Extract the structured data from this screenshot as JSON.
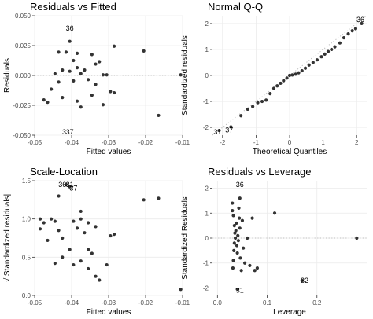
{
  "chart_data": [
    {
      "type": "scatter",
      "title": "Residuals vs Fitted",
      "xlabel": "Fitted values",
      "ylabel": "Residuals",
      "xlim": [
        -0.05,
        -0.01
      ],
      "ylim": [
        -0.05,
        0.05
      ],
      "xticks": [
        "-0.05",
        "-0.04",
        "-0.03",
        "-0.02",
        "-0.01"
      ],
      "xtick_values": [
        -0.05,
        -0.04,
        -0.03,
        -0.02,
        -0.01
      ],
      "yticks": [
        "-0.050",
        "-0.025",
        "0.000",
        "0.025",
        "0.050"
      ],
      "ytick_values": [
        -0.05,
        -0.025,
        0,
        0.025,
        0.05
      ],
      "reference_line": {
        "type": "horizontal",
        "y": 0,
        "style": "dotted"
      },
      "grid": true,
      "points": [
        {
          "x": -0.0435,
          "y": 0.0195
        },
        {
          "x": -0.0415,
          "y": 0.0195
        },
        {
          "x": -0.0405,
          "y": 0.0285
        },
        {
          "x": -0.0385,
          "y": 0.0185
        },
        {
          "x": -0.0375,
          "y": 0.0015
        },
        {
          "x": -0.0365,
          "y": 0.0045
        },
        {
          "x": -0.0345,
          "y": 0.0175
        },
        {
          "x": -0.0335,
          "y": 0.0095
        },
        {
          "x": -0.0325,
          "y": 0.0115
        },
        {
          "x": -0.0285,
          "y": 0.0245
        },
        {
          "x": -0.0305,
          "y": 0.0005
        },
        {
          "x": -0.0315,
          "y": 0.0005
        },
        {
          "x": -0.0395,
          "y": 0.0125
        },
        {
          "x": -0.0385,
          "y": 0.0065
        },
        {
          "x": -0.0405,
          "y": 0.0035
        },
        {
          "x": -0.0425,
          "y": 0.0045
        },
        {
          "x": -0.0445,
          "y": 0.0015
        },
        {
          "x": -0.0395,
          "y": -0.0045
        },
        {
          "x": -0.0355,
          "y": -0.0035
        },
        {
          "x": -0.0335,
          "y": -0.0075
        },
        {
          "x": -0.0435,
          "y": -0.0055
        },
        {
          "x": -0.0455,
          "y": -0.0115
        },
        {
          "x": -0.0475,
          "y": -0.0205
        },
        {
          "x": -0.0425,
          "y": -0.0185
        },
        {
          "x": -0.0385,
          "y": -0.0215
        },
        {
          "x": -0.0345,
          "y": -0.0165
        },
        {
          "x": -0.0315,
          "y": -0.0245
        },
        {
          "x": -0.0295,
          "y": -0.0135
        },
        {
          "x": -0.0285,
          "y": -0.0145
        },
        {
          "x": -0.0205,
          "y": 0.0205
        },
        {
          "x": -0.0165,
          "y": -0.0335
        },
        {
          "x": -0.0105,
          "y": 0.0005
        },
        {
          "x": -0.0465,
          "y": -0.0225
        },
        {
          "x": -0.0375,
          "y": -0.0265
        }
      ],
      "labels": [
        {
          "text": "36",
          "x": -0.0405,
          "y": 0.0395
        },
        {
          "text": "31",
          "x": -0.0415,
          "y": -0.0495
        },
        {
          "text": "37",
          "x": -0.0405,
          "y": -0.0475
        }
      ]
    },
    {
      "type": "scatter",
      "title": "Normal Q-Q",
      "xlabel": "Theoretical Quantiles",
      "ylabel": "Standardized residuals",
      "xlim": [
        -2.3,
        2.3
      ],
      "ylim": [
        -2.3,
        2.3
      ],
      "xticks": [
        "-2",
        "-1",
        "0",
        "1",
        "2"
      ],
      "xtick_values": [
        -2,
        -1,
        0,
        1,
        2
      ],
      "yticks": [
        "-2",
        "-1",
        "0",
        "1",
        "2"
      ],
      "ytick_values": [
        -2,
        -1,
        0,
        1,
        2
      ],
      "reference_line": {
        "type": "diagonal",
        "from": [
          -2.3,
          -2.3
        ],
        "to": [
          2.3,
          2.3
        ],
        "style": "dotted"
      },
      "grid": true,
      "points": [
        {
          "x": -2.1,
          "y": -2.12
        },
        {
          "x": -1.75,
          "y": -1.98
        },
        {
          "x": -1.45,
          "y": -1.55
        },
        {
          "x": -1.25,
          "y": -1.3
        },
        {
          "x": -1.1,
          "y": -1.2
        },
        {
          "x": -0.95,
          "y": -1.05
        },
        {
          "x": -0.82,
          "y": -1.0
        },
        {
          "x": -0.7,
          "y": -0.95
        },
        {
          "x": -0.58,
          "y": -0.7
        },
        {
          "x": -0.47,
          "y": -0.5
        },
        {
          "x": -0.37,
          "y": -0.4
        },
        {
          "x": -0.27,
          "y": -0.3
        },
        {
          "x": -0.18,
          "y": -0.2
        },
        {
          "x": -0.08,
          "y": -0.1
        },
        {
          "x": 0.0,
          "y": 0.0
        },
        {
          "x": 0.08,
          "y": 0.02
        },
        {
          "x": 0.18,
          "y": 0.05
        },
        {
          "x": 0.27,
          "y": 0.1
        },
        {
          "x": 0.37,
          "y": 0.18
        },
        {
          "x": 0.47,
          "y": 0.28
        },
        {
          "x": 0.58,
          "y": 0.4
        },
        {
          "x": 0.7,
          "y": 0.5
        },
        {
          "x": 0.82,
          "y": 0.6
        },
        {
          "x": 0.95,
          "y": 0.72
        },
        {
          "x": 1.05,
          "y": 0.82
        },
        {
          "x": 1.15,
          "y": 0.92
        },
        {
          "x": 1.25,
          "y": 1.0
        },
        {
          "x": 1.35,
          "y": 1.1
        },
        {
          "x": 1.5,
          "y": 1.25
        },
        {
          "x": 1.62,
          "y": 1.45
        },
        {
          "x": 1.75,
          "y": 1.6
        },
        {
          "x": 1.87,
          "y": 1.72
        },
        {
          "x": 1.97,
          "y": 1.8
        },
        {
          "x": 2.15,
          "y": 2.0
        }
      ],
      "labels": [
        {
          "text": "36",
          "x": 2.2,
          "y": 2.3
        },
        {
          "text": "31",
          "x": -2.15,
          "y": -2.25
        },
        {
          "text": "37",
          "x": -1.8,
          "y": -2.1
        }
      ]
    },
    {
      "type": "scatter",
      "title": "Scale-Location",
      "xlabel": "Fitted values",
      "ylabel": "√|Standardized residuals|",
      "xlim": [
        -0.05,
        -0.01
      ],
      "ylim": [
        0,
        1.5
      ],
      "xticks": [
        "-0.05",
        "-0.04",
        "-0.03",
        "-0.02",
        "-0.01"
      ],
      "xtick_values": [
        -0.05,
        -0.04,
        -0.03,
        -0.02,
        -0.01
      ],
      "yticks": [
        "0.0",
        "0.5",
        "1.0",
        "1.5"
      ],
      "ytick_values": [
        0,
        0.5,
        1.0,
        1.5
      ],
      "grid": true,
      "points": [
        {
          "x": -0.0485,
          "y": 1.0
        },
        {
          "x": -0.0485,
          "y": 0.87
        },
        {
          "x": -0.0475,
          "y": 0.95
        },
        {
          "x": -0.0455,
          "y": 1.0
        },
        {
          "x": -0.0445,
          "y": 0.97
        },
        {
          "x": -0.0435,
          "y": 0.85
        },
        {
          "x": -0.0425,
          "y": 0.75
        },
        {
          "x": -0.0435,
          "y": 1.3
        },
        {
          "x": -0.0415,
          "y": 1.45
        },
        {
          "x": -0.0405,
          "y": 1.42
        },
        {
          "x": -0.0395,
          "y": 0.97
        },
        {
          "x": -0.0385,
          "y": 0.88
        },
        {
          "x": -0.0375,
          "y": 1.0
        },
        {
          "x": -0.0365,
          "y": 0.82
        },
        {
          "x": -0.0355,
          "y": 0.95
        },
        {
          "x": -0.0335,
          "y": 0.9
        },
        {
          "x": -0.0345,
          "y": 0.55
        },
        {
          "x": -0.0355,
          "y": 0.6
        },
        {
          "x": -0.0375,
          "y": 1.1
        },
        {
          "x": -0.0405,
          "y": 0.6
        },
        {
          "x": -0.0425,
          "y": 0.5
        },
        {
          "x": -0.0445,
          "y": 0.42
        },
        {
          "x": -0.0465,
          "y": 0.72
        },
        {
          "x": -0.0395,
          "y": 0.4
        },
        {
          "x": -0.0375,
          "y": 0.45
        },
        {
          "x": -0.0355,
          "y": 0.35
        },
        {
          "x": -0.0335,
          "y": 0.25
        },
        {
          "x": -0.0325,
          "y": 0.2
        },
        {
          "x": -0.0295,
          "y": 0.78
        },
        {
          "x": -0.0285,
          "y": 0.8
        },
        {
          "x": -0.0305,
          "y": 0.4
        },
        {
          "x": -0.0205,
          "y": 1.25
        },
        {
          "x": -0.0165,
          "y": 1.27
        },
        {
          "x": -0.0105,
          "y": 0.08
        }
      ],
      "labels": [
        {
          "text": "36",
          "x": -0.0425,
          "y": 1.47
        },
        {
          "text": "31",
          "x": -0.0405,
          "y": 1.45
        },
        {
          "text": "37",
          "x": -0.0395,
          "y": 1.4
        }
      ]
    },
    {
      "type": "scatter",
      "title": "Residuals vs Leverage",
      "xlabel": "Leverage",
      "ylabel": "Standardized Residuals",
      "xlim": [
        -0.01,
        0.3
      ],
      "ylim": [
        -2.3,
        2.3
      ],
      "xticks": [
        "0.0",
        "0.1",
        "0.2"
      ],
      "xtick_values": [
        0,
        0.1,
        0.2
      ],
      "yticks": [
        "-2",
        "-1",
        "0",
        "1",
        "2"
      ],
      "ytick_values": [
        -2,
        -1,
        0,
        1,
        2
      ],
      "reference_line": {
        "type": "horizontal",
        "y": 0,
        "style": "dotted"
      },
      "grid": true,
      "points": [
        {
          "x": 0.03,
          "y": 1.4
        },
        {
          "x": 0.03,
          "y": 1.1
        },
        {
          "x": 0.032,
          "y": 0.9
        },
        {
          "x": 0.034,
          "y": 0.5
        },
        {
          "x": 0.035,
          "y": 0.2
        },
        {
          "x": 0.036,
          "y": 0.0
        },
        {
          "x": 0.034,
          "y": -0.2
        },
        {
          "x": 0.033,
          "y": -0.5
        },
        {
          "x": 0.032,
          "y": -0.9
        },
        {
          "x": 0.031,
          "y": -1.2
        },
        {
          "x": 0.037,
          "y": 0.3
        },
        {
          "x": 0.038,
          "y": 0.6
        },
        {
          "x": 0.039,
          "y": -0.3
        },
        {
          "x": 0.04,
          "y": -0.6
        },
        {
          "x": 0.041,
          "y": 0.1
        },
        {
          "x": 0.042,
          "y": -0.1
        },
        {
          "x": 0.043,
          "y": 1.2
        },
        {
          "x": 0.044,
          "y": 0.8
        },
        {
          "x": 0.045,
          "y": 0.4
        },
        {
          "x": 0.046,
          "y": -0.8
        },
        {
          "x": 0.048,
          "y": -1.3
        },
        {
          "x": 0.05,
          "y": 0.7
        },
        {
          "x": 0.052,
          "y": -0.4
        },
        {
          "x": 0.055,
          "y": -1.0
        },
        {
          "x": 0.06,
          "y": 0.0
        },
        {
          "x": 0.065,
          "y": -1.1
        },
        {
          "x": 0.07,
          "y": 0.8
        },
        {
          "x": 0.075,
          "y": -1.3
        },
        {
          "x": 0.08,
          "y": -1.2
        },
        {
          "x": 0.115,
          "y": 1.0
        },
        {
          "x": 0.045,
          "y": 1.6
        },
        {
          "x": 0.04,
          "y": -2.05
        },
        {
          "x": 0.28,
          "y": 0.0
        },
        {
          "x": 0.17,
          "y": -1.7
        }
      ],
      "labels": [
        {
          "text": "36",
          "x": 0.045,
          "y": 2.25
        },
        {
          "text": "31",
          "x": 0.045,
          "y": -2.1
        },
        {
          "text": "32",
          "x": 0.175,
          "y": -1.7
        }
      ]
    }
  ]
}
